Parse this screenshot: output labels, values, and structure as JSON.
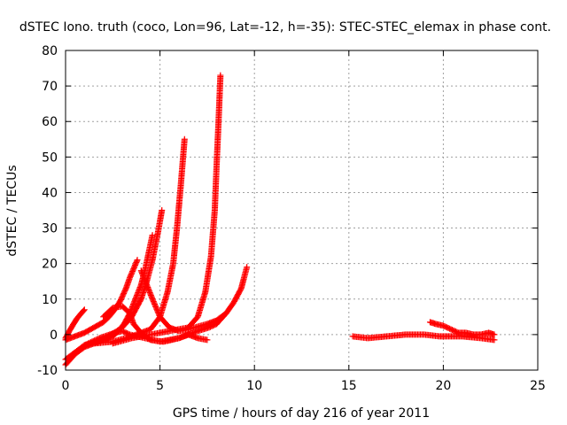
{
  "chart_data": {
    "type": "scatter",
    "title": "dSTEC Iono. truth (coco, Lon=96, Lat=-12, h=-35): STEC-STEC_elemax in phase cont.",
    "xlabel": "GPS time / hours of day 216 of year 2011",
    "ylabel": "dSTEC  / TECUs",
    "xlim": [
      0,
      25
    ],
    "ylim": [
      -10,
      80
    ],
    "xticks": [
      0,
      5,
      10,
      15,
      20,
      25
    ],
    "yticks": [
      -10,
      0,
      10,
      20,
      30,
      40,
      50,
      60,
      70,
      80
    ],
    "grid": true,
    "legend": "none",
    "marker": "plus",
    "color": "#ff0000",
    "series": [
      {
        "x": [
          0.0,
          0.2,
          0.4,
          0.6,
          0.8,
          1.0
        ],
        "y": [
          -1.0,
          1.0,
          2.8,
          4.5,
          5.8,
          7.0
        ]
      },
      {
        "x": [
          0.0,
          0.5,
          1.0,
          1.5,
          2.0,
          2.3,
          2.6,
          2.9,
          3.2,
          3.4,
          3.6,
          3.8
        ],
        "y": [
          -1.5,
          -0.5,
          0.5,
          2.0,
          3.5,
          5.0,
          7.0,
          9.5,
          13.0,
          16.0,
          18.5,
          21.0
        ]
      },
      {
        "x": [
          0.0,
          0.5,
          1.0,
          1.5,
          2.0,
          2.5,
          2.8,
          3.1,
          3.4,
          3.7,
          4.0,
          4.2,
          4.4,
          4.6
        ],
        "y": [
          -8.5,
          -5.5,
          -3.5,
          -2.5,
          -1.5,
          -0.5,
          1.0,
          3.0,
          6.0,
          10.0,
          14.0,
          18.0,
          23.0,
          28.0
        ]
      },
      {
        "x": [
          0.0,
          1.0,
          2.0,
          3.0,
          3.5,
          4.0,
          4.3,
          4.6,
          4.9,
          5.1
        ],
        "y": [
          -7.0,
          -3.0,
          -1.5,
          2.0,
          5.0,
          10.0,
          15.0,
          21.0,
          29.0,
          35.0
        ]
      },
      {
        "x": [
          1.5,
          2.5,
          3.5,
          4.5,
          5.0,
          5.4,
          5.7,
          5.9,
          6.1,
          6.3
        ],
        "y": [
          -2.5,
          -2.0,
          -0.5,
          1.5,
          5.0,
          12.0,
          20.0,
          30.0,
          42.0,
          55.0
        ]
      },
      {
        "x": [
          2.5,
          3.5,
          4.5,
          5.5,
          6.5,
          7.0,
          7.4,
          7.7,
          7.9,
          8.0,
          8.1,
          8.2
        ],
        "y": [
          -2.5,
          -1.0,
          0.0,
          1.0,
          2.0,
          5.0,
          12.0,
          22.0,
          35.0,
          48.0,
          60.0,
          73.0
        ]
      },
      {
        "x": [
          1.0,
          1.8,
          2.6,
          3.0,
          3.4,
          4.2,
          5.0,
          6.0,
          7.0,
          7.6,
          8.0,
          8.5,
          8.9,
          9.3,
          9.6
        ],
        "y": [
          -3.0,
          -1.0,
          0.5,
          1.0,
          0.0,
          -1.0,
          -2.0,
          -1.0,
          1.0,
          2.0,
          3.0,
          6.0,
          9.0,
          13.0,
          19.0
        ]
      },
      {
        "x": [
          2.0,
          2.5,
          3.0,
          3.4,
          3.6,
          4.0,
          4.5,
          5.2,
          6.0,
          6.5,
          7.0,
          7.5
        ],
        "y": [
          5.0,
          7.5,
          8.0,
          6.0,
          3.0,
          0.5,
          -1.5,
          -2.0,
          -1.0,
          0.0,
          -1.0,
          -1.5
        ]
      },
      {
        "x": [
          4.0,
          4.3,
          4.6,
          5.0,
          5.5,
          6.0,
          6.5,
          7.5,
          8.0,
          8.5
        ],
        "y": [
          18.0,
          14.0,
          10.0,
          5.0,
          2.0,
          1.0,
          1.5,
          3.0,
          4.0,
          6.0
        ]
      },
      {
        "x": [
          15.2,
          16.0,
          17.0,
          18.0,
          19.0,
          19.8,
          20.5,
          21.0,
          22.0,
          22.7
        ],
        "y": [
          -0.5,
          -1.0,
          -0.5,
          0.0,
          0.0,
          -0.5,
          -0.5,
          -0.5,
          -1.0,
          -1.5
        ]
      },
      {
        "x": [
          19.3,
          19.6,
          20.0,
          20.4,
          20.8,
          21.2,
          21.6,
          22.0,
          22.4,
          22.7
        ],
        "y": [
          3.5,
          3.0,
          2.5,
          1.5,
          0.5,
          0.5,
          0.0,
          0.0,
          0.5,
          0.0
        ]
      }
    ]
  }
}
